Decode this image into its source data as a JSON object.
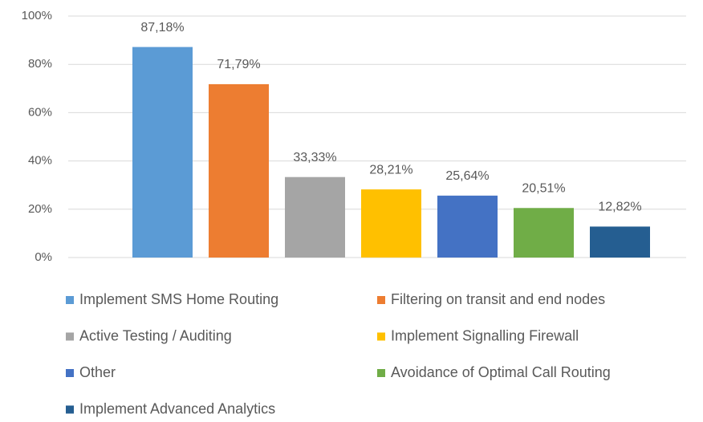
{
  "chart_data": {
    "type": "bar",
    "categories": [
      "Implement SMS Home Routing",
      "Filtering on transit and end nodes",
      "Active Testing / Auditing",
      "Implement Signalling Firewall",
      "Other",
      "Avoidance of Optimal Call Routing",
      "Implement Advanced Analytics"
    ],
    "values": [
      87.18,
      71.79,
      33.33,
      28.21,
      25.64,
      20.51,
      12.82
    ],
    "value_labels": [
      "87,18%",
      "71,79%",
      "33,33%",
      "28,21%",
      "25,64%",
      "20,51%",
      "12,82%"
    ],
    "colors": [
      "#5b9bd5",
      "#ed7d31",
      "#a5a5a5",
      "#ffc000",
      "#4472c4",
      "#70ad47",
      "#255e91"
    ],
    "ylim": [
      0,
      100
    ],
    "yticks": [
      {
        "value": 0,
        "label": "0%"
      },
      {
        "value": 20,
        "label": "20%"
      },
      {
        "value": 40,
        "label": "40%"
      },
      {
        "value": 60,
        "label": "60%"
      },
      {
        "value": 80,
        "label": "80%"
      },
      {
        "value": 100,
        "label": "100%"
      }
    ],
    "grid": true,
    "legend": "bottom"
  }
}
